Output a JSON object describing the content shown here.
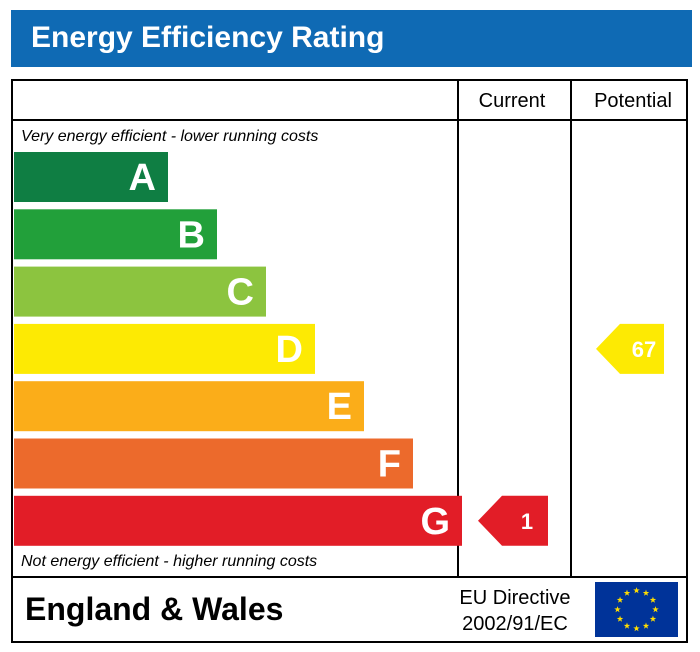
{
  "title": "Energy Efficiency Rating",
  "chart_data": {
    "type": "bar",
    "title": "Energy Efficiency Rating",
    "columns": {
      "current": "Current",
      "potential": "Potential"
    },
    "top_caption": "Very energy efficient - lower running costs",
    "bottom_caption": "Not energy efficient - higher running costs",
    "bands": [
      {
        "letter": "A",
        "color": "#0f7e43",
        "rank": 1
      },
      {
        "letter": "B",
        "color": "#22a03a",
        "rank": 2
      },
      {
        "letter": "C",
        "color": "#8cc43f",
        "rank": 3
      },
      {
        "letter": "D",
        "color": "#fdea03",
        "rank": 4
      },
      {
        "letter": "E",
        "color": "#fbad19",
        "rank": 5
      },
      {
        "letter": "F",
        "color": "#ec6a2c",
        "rank": 6
      },
      {
        "letter": "G",
        "color": "#e21d27",
        "rank": 7
      }
    ],
    "current": {
      "value": 1,
      "band": "G",
      "color": "#e21d27",
      "text_color": "#ffffff"
    },
    "potential": {
      "value": 67,
      "band": "D",
      "color": "#fdea03",
      "text_color": "#ffffff"
    }
  },
  "footer": {
    "region": "England & Wales",
    "directive_line1": "EU Directive",
    "directive_line2": "2002/91/EC",
    "flag_name": "eu-flag-icon",
    "flag_color": "#003399",
    "star_color": "#ffdd00"
  }
}
